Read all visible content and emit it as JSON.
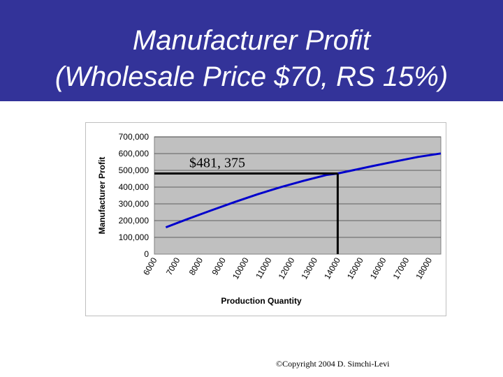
{
  "slide": {
    "title_line1": "Manufacturer Profit",
    "title_line2": "(Wholesale Price $70, RS 15%)",
    "footer": "©Copyright 2004 D. Simchi-Levi",
    "header_color": "#333399"
  },
  "chart_data": {
    "type": "line",
    "title": "",
    "xlabel": "Production Quantity",
    "ylabel": "Manufacturer Profit",
    "x_ticks": [
      "6000",
      "7000",
      "8000",
      "9000",
      "10000",
      "11000",
      "12000",
      "13000",
      "14000",
      "15000",
      "16000",
      "17000",
      "18000"
    ],
    "y_ticks": [
      "0",
      "100,000",
      "200,000",
      "300,000",
      "400,000",
      "500,000",
      "600,000",
      "700,000"
    ],
    "xlim": [
      6000,
      18500
    ],
    "ylim": [
      0,
      700000
    ],
    "grid": true,
    "plot_background": "#c0c0c0",
    "series": [
      {
        "color": "#0000cc",
        "x": [
          6500,
          7500,
          8500,
          9500,
          10500,
          11500,
          12500,
          13500,
          14000,
          14500,
          15500,
          16500,
          17500,
          18500
        ],
        "y": [
          160000,
          212000,
          262000,
          311000,
          357000,
          399000,
          437000,
          472000,
          481375,
          496000,
          525000,
          553000,
          580000,
          601000
        ]
      }
    ],
    "annotation": {
      "label": "$481, 375",
      "x": 14000,
      "y": 481375
    }
  }
}
